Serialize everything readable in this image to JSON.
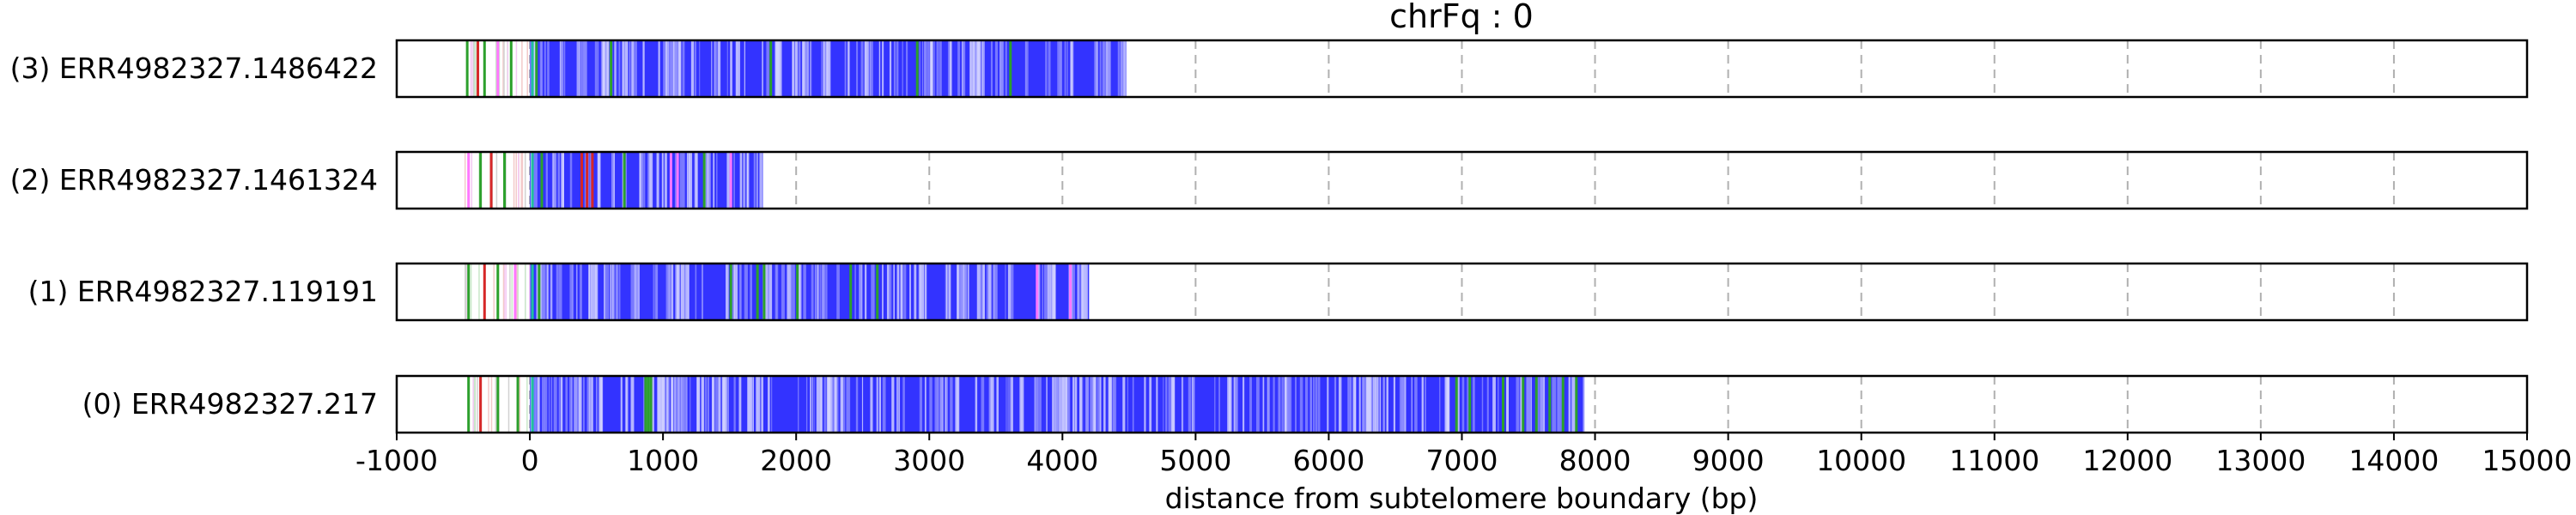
{
  "chart_data": {
    "type": "bar",
    "title": "chrFq : 0",
    "xlabel": "distance from subtelomere boundary (bp)",
    "ylabel": "",
    "xlim": [
      -1000,
      15000
    ],
    "xticks": [
      -1000,
      0,
      1000,
      2000,
      3000,
      4000,
      5000,
      6000,
      7000,
      8000,
      9000,
      10000,
      11000,
      12000,
      13000,
      14000,
      15000
    ],
    "grid": "vertical dashed",
    "colors": {
      "main_repeat": "#3333ff",
      "green_motif": "#2ca02c",
      "red_motif": "#d62728",
      "pink_motif": "#ff77ff",
      "teal_start": "#20c0a0"
    },
    "reads": [
      {
        "label": "(3) ERR4982327.1486422",
        "start": -500,
        "end": 4480,
        "accents": [
          {
            "pos": -480,
            "color": "green"
          },
          {
            "pos": -400,
            "color": "red"
          },
          {
            "pos": -350,
            "color": "green"
          },
          {
            "pos": -250,
            "color": "pink"
          },
          {
            "pos": -150,
            "color": "green"
          },
          {
            "pos": 10,
            "color": "teal"
          },
          {
            "pos": 40,
            "color": "green"
          },
          {
            "pos": 600,
            "color": "green"
          },
          {
            "pos": 1800,
            "color": "green"
          },
          {
            "pos": 2900,
            "color": "green"
          },
          {
            "pos": 3600,
            "color": "green"
          }
        ]
      },
      {
        "label": "(2) ERR4982327.1461324",
        "start": -500,
        "end": 1750,
        "accents": [
          {
            "pos": -470,
            "color": "pink"
          },
          {
            "pos": -380,
            "color": "green"
          },
          {
            "pos": -300,
            "color": "red"
          },
          {
            "pos": -200,
            "color": "green"
          },
          {
            "pos": 10,
            "color": "teal"
          },
          {
            "pos": 80,
            "color": "green"
          },
          {
            "pos": 380,
            "color": "red"
          },
          {
            "pos": 420,
            "color": "red"
          },
          {
            "pos": 460,
            "color": "red"
          },
          {
            "pos": 700,
            "color": "green"
          },
          {
            "pos": 1050,
            "color": "pink"
          },
          {
            "pos": 1100,
            "color": "pink"
          },
          {
            "pos": 1300,
            "color": "green"
          },
          {
            "pos": 1500,
            "color": "pink"
          }
        ]
      },
      {
        "label": "(1) ERR4982327.119191",
        "start": -500,
        "end": 4200,
        "accents": [
          {
            "pos": -470,
            "color": "green"
          },
          {
            "pos": -350,
            "color": "red"
          },
          {
            "pos": -250,
            "color": "green"
          },
          {
            "pos": -120,
            "color": "pink"
          },
          {
            "pos": 10,
            "color": "teal"
          },
          {
            "pos": 60,
            "color": "green"
          },
          {
            "pos": 1500,
            "color": "green"
          },
          {
            "pos": 1700,
            "color": "green"
          },
          {
            "pos": 1750,
            "color": "green"
          },
          {
            "pos": 2000,
            "color": "green"
          },
          {
            "pos": 2400,
            "color": "green"
          },
          {
            "pos": 2600,
            "color": "green"
          },
          {
            "pos": 3800,
            "color": "pink"
          },
          {
            "pos": 4050,
            "color": "pink"
          }
        ]
      },
      {
        "label": "(0) ERR4982327.217",
        "start": -500,
        "end": 7920,
        "accents": [
          {
            "pos": -470,
            "color": "green"
          },
          {
            "pos": -380,
            "color": "red"
          },
          {
            "pos": -250,
            "color": "green"
          },
          {
            "pos": -100,
            "color": "green"
          },
          {
            "pos": 10,
            "color": "teal"
          },
          {
            "pos": 860,
            "color": "green"
          },
          {
            "pos": 880,
            "color": "green"
          },
          {
            "pos": 900,
            "color": "green"
          },
          {
            "pos": 6950,
            "color": "green"
          },
          {
            "pos": 7050,
            "color": "green"
          },
          {
            "pos": 7300,
            "color": "green"
          },
          {
            "pos": 7450,
            "color": "green"
          },
          {
            "pos": 7550,
            "color": "green"
          },
          {
            "pos": 7650,
            "color": "green"
          },
          {
            "pos": 7750,
            "color": "green"
          },
          {
            "pos": 7850,
            "color": "green"
          }
        ]
      }
    ]
  }
}
